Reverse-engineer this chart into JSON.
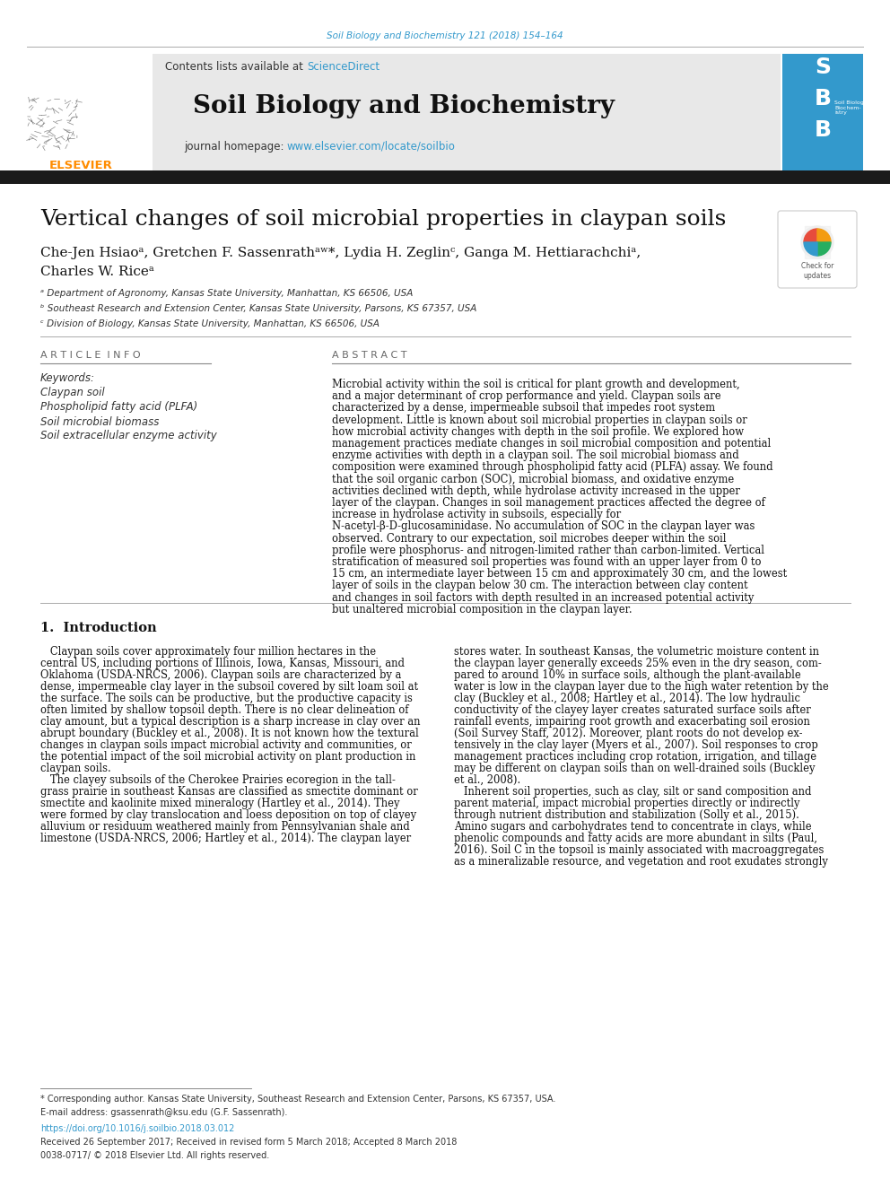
{
  "journal_line": "Soil Biology and Biochemistry 121 (2018) 154–164",
  "journal_line_color": "#3399CC",
  "contents_text": "Contents lists available at ",
  "sciencedirect_text": "ScienceDirect",
  "sciencedirect_color": "#3399CC",
  "journal_title": "Soil Biology and Biochemistry",
  "journal_homepage_prefix": "journal homepage: ",
  "journal_homepage_url": "www.elsevier.com/locate/soilbio",
  "journal_homepage_color": "#3399CC",
  "header_bg": "#E8E8E8",
  "black_bar_color": "#1a1a1a",
  "paper_title": "Vertical changes of soil microbial properties in claypan soils",
  "authors_line1": "Che-Jen Hsiaoᵃ, Gretchen F. Sassenrathᵃʷ*, Lydia H. Zeglinᶜ, Ganga M. Hettiarachchiᵃ,",
  "authors_line2": "Charles W. Riceᵃ",
  "affil_a": "ᵃ Department of Agronomy, Kansas State University, Manhattan, KS 66506, USA",
  "affil_b": "ᵇ Southeast Research and Extension Center, Kansas State University, Parsons, KS 67357, USA",
  "affil_c": "ᶜ Division of Biology, Kansas State University, Manhattan, KS 66506, USA",
  "article_info_label": "A R T I C L E  I N F O",
  "abstract_label": "A B S T R A C T",
  "keywords_label": "Keywords:",
  "keywords": [
    "Claypan soil",
    "Phospholipid fatty acid (PLFA)",
    "Soil microbial biomass",
    "Soil extracellular enzyme activity"
  ],
  "abstract_text": "Microbial activity within the soil is critical for plant growth and development, and a major determinant of crop performance and yield. Claypan soils are characterized by a dense, impermeable subsoil that impedes root system development. Little is known about soil microbial properties in claypan soils or how microbial activity changes with depth in the soil profile. We explored how management practices mediate changes in soil microbial composition and potential enzyme activities with depth in a claypan soil. The soil microbial biomass and composition were examined through phospholipid fatty acid (PLFA) assay. We found that the soil organic carbon (SOC), microbial biomass, and oxidative enzyme activities declined with depth, while hydrolase activity increased in the upper layer of the claypan. Changes in soil management practices affected the degree of increase in hydrolase activity in subsoils, especially for N-acetyl-β-D-glucosaminidase. No accumulation of SOC in the claypan layer was observed. Contrary to our expectation, soil microbes deeper within the soil profile were phosphorus- and nitrogen-limited rather than carbon-limited. Vertical stratification of measured soil properties was found with an upper layer from 0 to 15 cm, an intermediate layer between 15 cm and approximately 30 cm, and the lowest layer of soils in the claypan below 30 cm. The interaction between clay content and changes in soil factors with depth resulted in an increased potential activity but unaltered microbial composition in the claypan layer.",
  "intro_heading": "1.  Introduction",
  "intro_col1_lines": [
    "   Claypan soils cover approximately four million hectares in the",
    "central US, including portions of Illinois, Iowa, Kansas, Missouri, and",
    "Oklahoma (USDA-NRCS, 2006). Claypan soils are characterized by a",
    "dense, impermeable clay layer in the subsoil covered by silt loam soil at",
    "the surface. The soils can be productive, but the productive capacity is",
    "often limited by shallow topsoil depth. There is no clear delineation of",
    "clay amount, but a typical description is a sharp increase in clay over an",
    "abrupt boundary (Buckley et al., 2008). It is not known how the textural",
    "changes in claypan soils impact microbial activity and communities, or",
    "the potential impact of the soil microbial activity on plant production in",
    "claypan soils.",
    "   The clayey subsoils of the Cherokee Prairies ecoregion in the tall-",
    "grass prairie in southeast Kansas are classified as smectite dominant or",
    "smectite and kaolinite mixed mineralogy (Hartley et al., 2014). They",
    "were formed by clay translocation and loess deposition on top of clayey",
    "alluvium or residuum weathered mainly from Pennsylvanian shale and",
    "limestone (USDA-NRCS, 2006; Hartley et al., 2014). The claypan layer"
  ],
  "intro_col2_lines": [
    "stores water. In southeast Kansas, the volumetric moisture content in",
    "the claypan layer generally exceeds 25% even in the dry season, com-",
    "pared to around 10% in surface soils, although the plant-available",
    "water is low in the claypan layer due to the high water retention by the",
    "clay (Buckley et al., 2008; Hartley et al., 2014). The low hydraulic",
    "conductivity of the clayey layer creates saturated surface soils after",
    "rainfall events, impairing root growth and exacerbating soil erosion",
    "(Soil Survey Staff, 2012). Moreover, plant roots do not develop ex-",
    "tensively in the clay layer (Myers et al., 2007). Soil responses to crop",
    "management practices including crop rotation, irrigation, and tillage",
    "may be different on claypan soils than on well-drained soils (Buckley",
    "et al., 2008).",
    "   Inherent soil properties, such as clay, silt or sand composition and",
    "parent material, impact microbial properties directly or indirectly",
    "through nutrient distribution and stabilization (Solly et al., 2015).",
    "Amino sugars and carbohydrates tend to concentrate in clays, while",
    "phenolic compounds and fatty acids are more abundant in silts (Paul,",
    "2016). Soil C in the topsoil is mainly associated with macroaggregates",
    "as a mineralizable resource, and vegetation and root exudates strongly"
  ],
  "footnote_star": "* Corresponding author. Kansas State University, Southeast Research and Extension Center, Parsons, KS 67357, USA.",
  "footnote_email": "E-mail address: gsassenrath@ksu.edu (G.F. Sassenrath).",
  "footnote_doi": "https://doi.org/10.1016/j.soilbio.2018.03.012",
  "footnote_received": "Received 26 September 2017; Received in revised form 5 March 2018; Accepted 8 March 2018",
  "footnote_issn": "0038-0717/ © 2018 Elsevier Ltd. All rights reserved.",
  "bg_color": "#FFFFFF",
  "text_color": "#000000",
  "link_color": "#3399CC"
}
